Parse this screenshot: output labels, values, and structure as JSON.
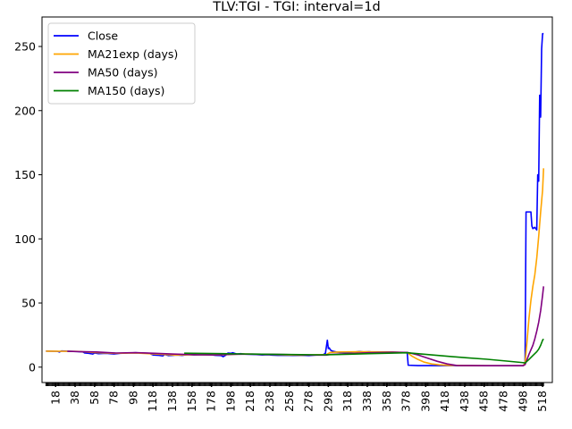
{
  "chart_data": {
    "type": "line",
    "title": "TLV:TGI - TGI: interval=1d",
    "xlabel": "",
    "ylabel": "",
    "xlim": [
      4,
      528
    ],
    "ylim": [
      -12,
      273
    ],
    "x_ticks": [
      18,
      38,
      58,
      78,
      98,
      118,
      138,
      158,
      178,
      198,
      218,
      238,
      258,
      278,
      298,
      318,
      338,
      358,
      378,
      398,
      418,
      438,
      458,
      478,
      498,
      518
    ],
    "y_ticks": [
      0,
      50,
      100,
      150,
      200,
      250
    ],
    "legend_position": "top-left",
    "grid": false,
    "series": [
      {
        "name": "Close",
        "color": "#0000ff",
        "points": [
          [
            8,
            12.5
          ],
          [
            20,
            12.3
          ],
          [
            22,
            11.8
          ],
          [
            24,
            12.6
          ],
          [
            30,
            12.4
          ],
          [
            40,
            12.2
          ],
          [
            46,
            11.8
          ],
          [
            48,
            11
          ],
          [
            52,
            10.8
          ],
          [
            56,
            10.2
          ],
          [
            58,
            11
          ],
          [
            62,
            10.5
          ],
          [
            70,
            10.8
          ],
          [
            78,
            10.2
          ],
          [
            84,
            10.8
          ],
          [
            92,
            11
          ],
          [
            100,
            11.2
          ],
          [
            108,
            11
          ],
          [
            114,
            10.8
          ],
          [
            118,
            9.5
          ],
          [
            124,
            9.2
          ],
          [
            128,
            8.8
          ],
          [
            130,
            9.8
          ],
          [
            134,
            9
          ],
          [
            138,
            9.2
          ],
          [
            142,
            9.5
          ],
          [
            148,
            9.2
          ],
          [
            154,
            9.8
          ],
          [
            160,
            9.5
          ],
          [
            168,
            9.6
          ],
          [
            176,
            9.8
          ],
          [
            182,
            9.2
          ],
          [
            188,
            9
          ],
          [
            190,
            8.2
          ],
          [
            193,
            9.5
          ],
          [
            195,
            11
          ],
          [
            198,
            10.8
          ],
          [
            200,
            11.2
          ],
          [
            204,
            10.2
          ],
          [
            208,
            10.5
          ],
          [
            212,
            10.2
          ],
          [
            218,
            10
          ],
          [
            224,
            9.8
          ],
          [
            230,
            9.5
          ],
          [
            236,
            9.6
          ],
          [
            240,
            9.4
          ],
          [
            246,
            9.2
          ],
          [
            254,
            9.3
          ],
          [
            262,
            9.1
          ],
          [
            270,
            9.2
          ],
          [
            278,
            9
          ],
          [
            284,
            9.4
          ],
          [
            290,
            9.6
          ],
          [
            293,
            9.8
          ],
          [
            295,
            10.8
          ],
          [
            297,
            21
          ],
          [
            298,
            14.5
          ],
          [
            299,
            15
          ],
          [
            300,
            13.5
          ],
          [
            302,
            12.5
          ],
          [
            306,
            11.8
          ],
          [
            310,
            11.5
          ],
          [
            316,
            11.2
          ],
          [
            320,
            11.5
          ],
          [
            326,
            11.8
          ],
          [
            330,
            12.2
          ],
          [
            334,
            11.8
          ],
          [
            340,
            12
          ],
          [
            346,
            11.5
          ],
          [
            352,
            11.8
          ],
          [
            358,
            11.5
          ],
          [
            362,
            11.8
          ],
          [
            368,
            11.6
          ],
          [
            374,
            11.4
          ],
          [
            379,
            11.2
          ],
          [
            380,
            1.5
          ],
          [
            390,
            1.2
          ],
          [
            420,
            1.2
          ],
          [
            460,
            1.1
          ],
          [
            490,
            1.1
          ],
          [
            498,
            1.2
          ],
          [
            500,
            3
          ],
          [
            501,
            121
          ],
          [
            506,
            121
          ],
          [
            507,
            110
          ],
          [
            508,
            108
          ],
          [
            510,
            109
          ],
          [
            512,
            107
          ],
          [
            513,
            150
          ],
          [
            514,
            145
          ],
          [
            515,
            212
          ],
          [
            516,
            195
          ],
          [
            517,
            248
          ],
          [
            518,
            260
          ],
          [
            519,
            260
          ]
        ]
      },
      {
        "name": "MA21exp (days)",
        "color": "#ffa500",
        "points": [
          [
            8,
            12.4
          ],
          [
            40,
            12.3
          ],
          [
            56,
            11.5
          ],
          [
            78,
            10.8
          ],
          [
            100,
            11
          ],
          [
            118,
            10.3
          ],
          [
            140,
            9.5
          ],
          [
            160,
            9.6
          ],
          [
            190,
            9.6
          ],
          [
            210,
            10.3
          ],
          [
            240,
            9.8
          ],
          [
            270,
            9.3
          ],
          [
            296,
            9.8
          ],
          [
            300,
            11.5
          ],
          [
            310,
            11.8
          ],
          [
            330,
            12
          ],
          [
            360,
            11.8
          ],
          [
            379,
            11.4
          ],
          [
            384,
            8.5
          ],
          [
            390,
            6
          ],
          [
            396,
            4
          ],
          [
            404,
            2.5
          ],
          [
            412,
            1.8
          ],
          [
            422,
            1.4
          ],
          [
            440,
            1.2
          ],
          [
            470,
            1.1
          ],
          [
            498,
            1.1
          ],
          [
            500,
            3
          ],
          [
            502,
            20
          ],
          [
            504,
            38
          ],
          [
            506,
            52
          ],
          [
            508,
            63
          ],
          [
            510,
            72
          ],
          [
            512,
            85
          ],
          [
            514,
            102
          ],
          [
            516,
            121
          ],
          [
            518,
            138
          ],
          [
            519,
            155
          ]
        ]
      },
      {
        "name": "MA50 (days)",
        "color": "#800080",
        "points": [
          [
            30,
            12.3
          ],
          [
            60,
            11.8
          ],
          [
            80,
            11
          ],
          [
            100,
            11.3
          ],
          [
            120,
            10.8
          ],
          [
            140,
            10.2
          ],
          [
            160,
            9.7
          ],
          [
            180,
            9.5
          ],
          [
            200,
            10
          ],
          [
            220,
            10.2
          ],
          [
            240,
            10
          ],
          [
            260,
            9.7
          ],
          [
            280,
            9.4
          ],
          [
            296,
            9.4
          ],
          [
            300,
            9.9
          ],
          [
            320,
            10.5
          ],
          [
            340,
            11.2
          ],
          [
            360,
            11.6
          ],
          [
            379,
            11.5
          ],
          [
            390,
            9.5
          ],
          [
            400,
            7
          ],
          [
            410,
            4.5
          ],
          [
            420,
            2.5
          ],
          [
            430,
            1.3
          ],
          [
            460,
            1.1
          ],
          [
            498,
            1.1
          ],
          [
            500,
            2
          ],
          [
            504,
            10
          ],
          [
            508,
            17
          ],
          [
            510,
            22
          ],
          [
            512,
            28
          ],
          [
            514,
            35
          ],
          [
            516,
            44
          ],
          [
            518,
            56
          ],
          [
            519,
            63
          ]
        ]
      },
      {
        "name": "MA150 (days)",
        "color": "#008000",
        "points": [
          [
            150,
            10.9
          ],
          [
            170,
            10.7
          ],
          [
            190,
            10.5
          ],
          [
            210,
            10.3
          ],
          [
            230,
            10.1
          ],
          [
            250,
            9.9
          ],
          [
            270,
            9.7
          ],
          [
            290,
            9.6
          ],
          [
            300,
            9.7
          ],
          [
            320,
            10.1
          ],
          [
            340,
            10.5
          ],
          [
            360,
            10.9
          ],
          [
            379,
            11.2
          ],
          [
            400,
            9.8
          ],
          [
            420,
            8.5
          ],
          [
            440,
            7.3
          ],
          [
            460,
            6.2
          ],
          [
            480,
            4.8
          ],
          [
            498,
            3.5
          ],
          [
            500,
            3.2
          ],
          [
            504,
            6
          ],
          [
            508,
            9
          ],
          [
            512,
            12
          ],
          [
            514,
            14
          ],
          [
            516,
            17
          ],
          [
            518,
            21
          ],
          [
            519,
            22
          ]
        ]
      }
    ]
  }
}
